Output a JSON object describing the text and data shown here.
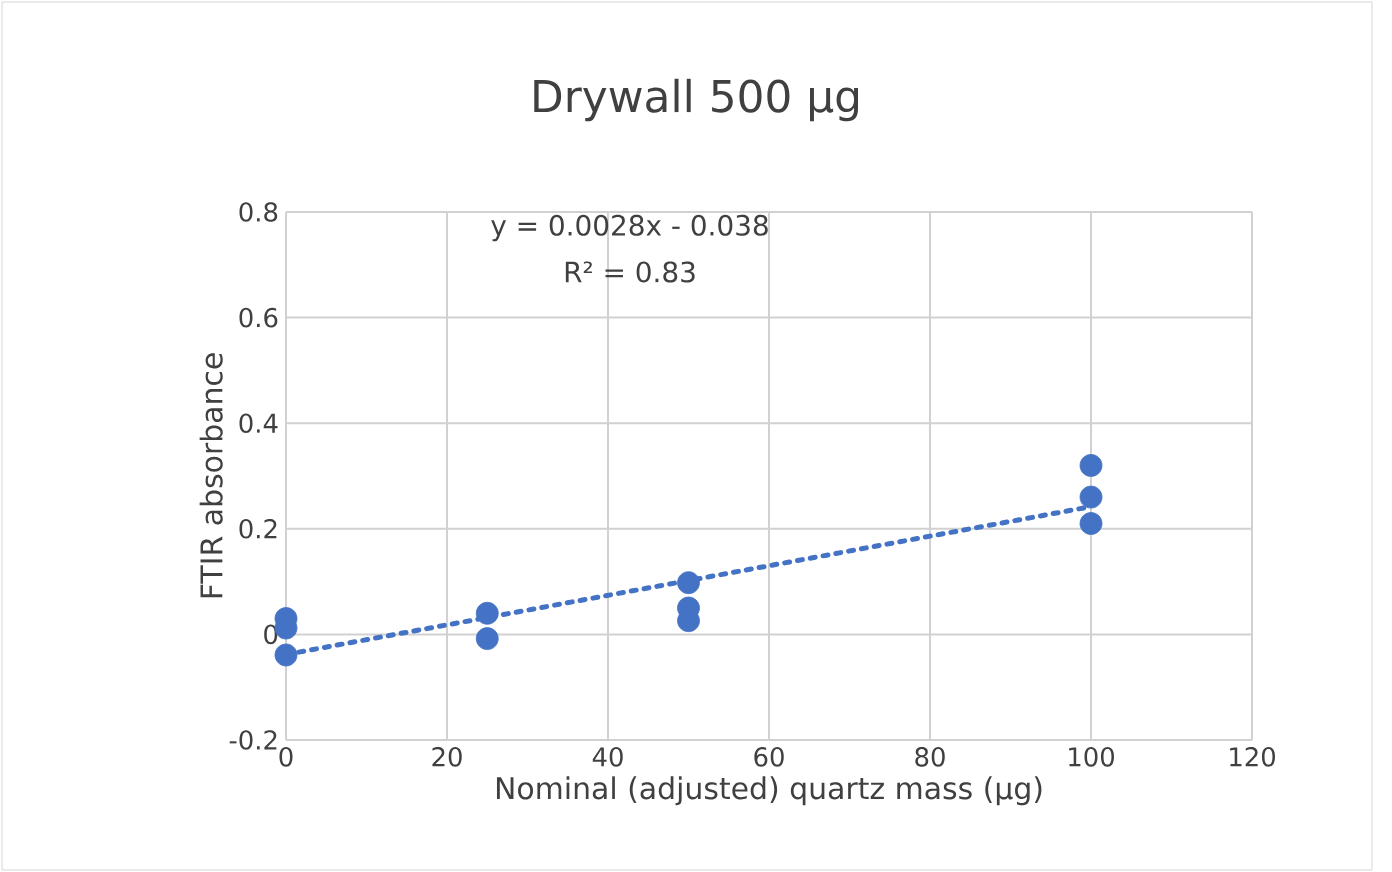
{
  "chart_data": {
    "type": "scatter",
    "title": "Drywall 500 µg",
    "xlabel": "Nominal (adjusted) quartz mass (µg)",
    "ylabel": "FTIR absorbance",
    "series": [
      {
        "color": "#4472c4",
        "marker": "circle",
        "x": [
          0,
          0,
          0,
          25,
          25,
          50,
          50,
          50,
          100,
          100,
          100
        ],
        "values": [
          0.03,
          0.012,
          -0.039,
          0.04,
          -0.008,
          0.098,
          0.05,
          0.026,
          0.32,
          0.26,
          0.21
        ]
      },
      {
        "type": "line",
        "color": "#4472c4",
        "line_style": "dotted",
        "marker": "none",
        "x": [
          0,
          100
        ],
        "values": [
          -0.038,
          0.242
        ]
      }
    ],
    "annotations": [
      "y = 0.0028x - 0.038",
      "R² = 0.83"
    ],
    "xlim": [
      0,
      120
    ],
    "xticks": [
      0,
      20,
      40,
      60,
      80,
      100,
      120
    ],
    "ylim": [
      -0.2,
      0.8
    ],
    "yticks": [
      -0.2,
      0,
      0.2,
      0.4,
      0.6,
      0.8
    ],
    "grid": true
  }
}
